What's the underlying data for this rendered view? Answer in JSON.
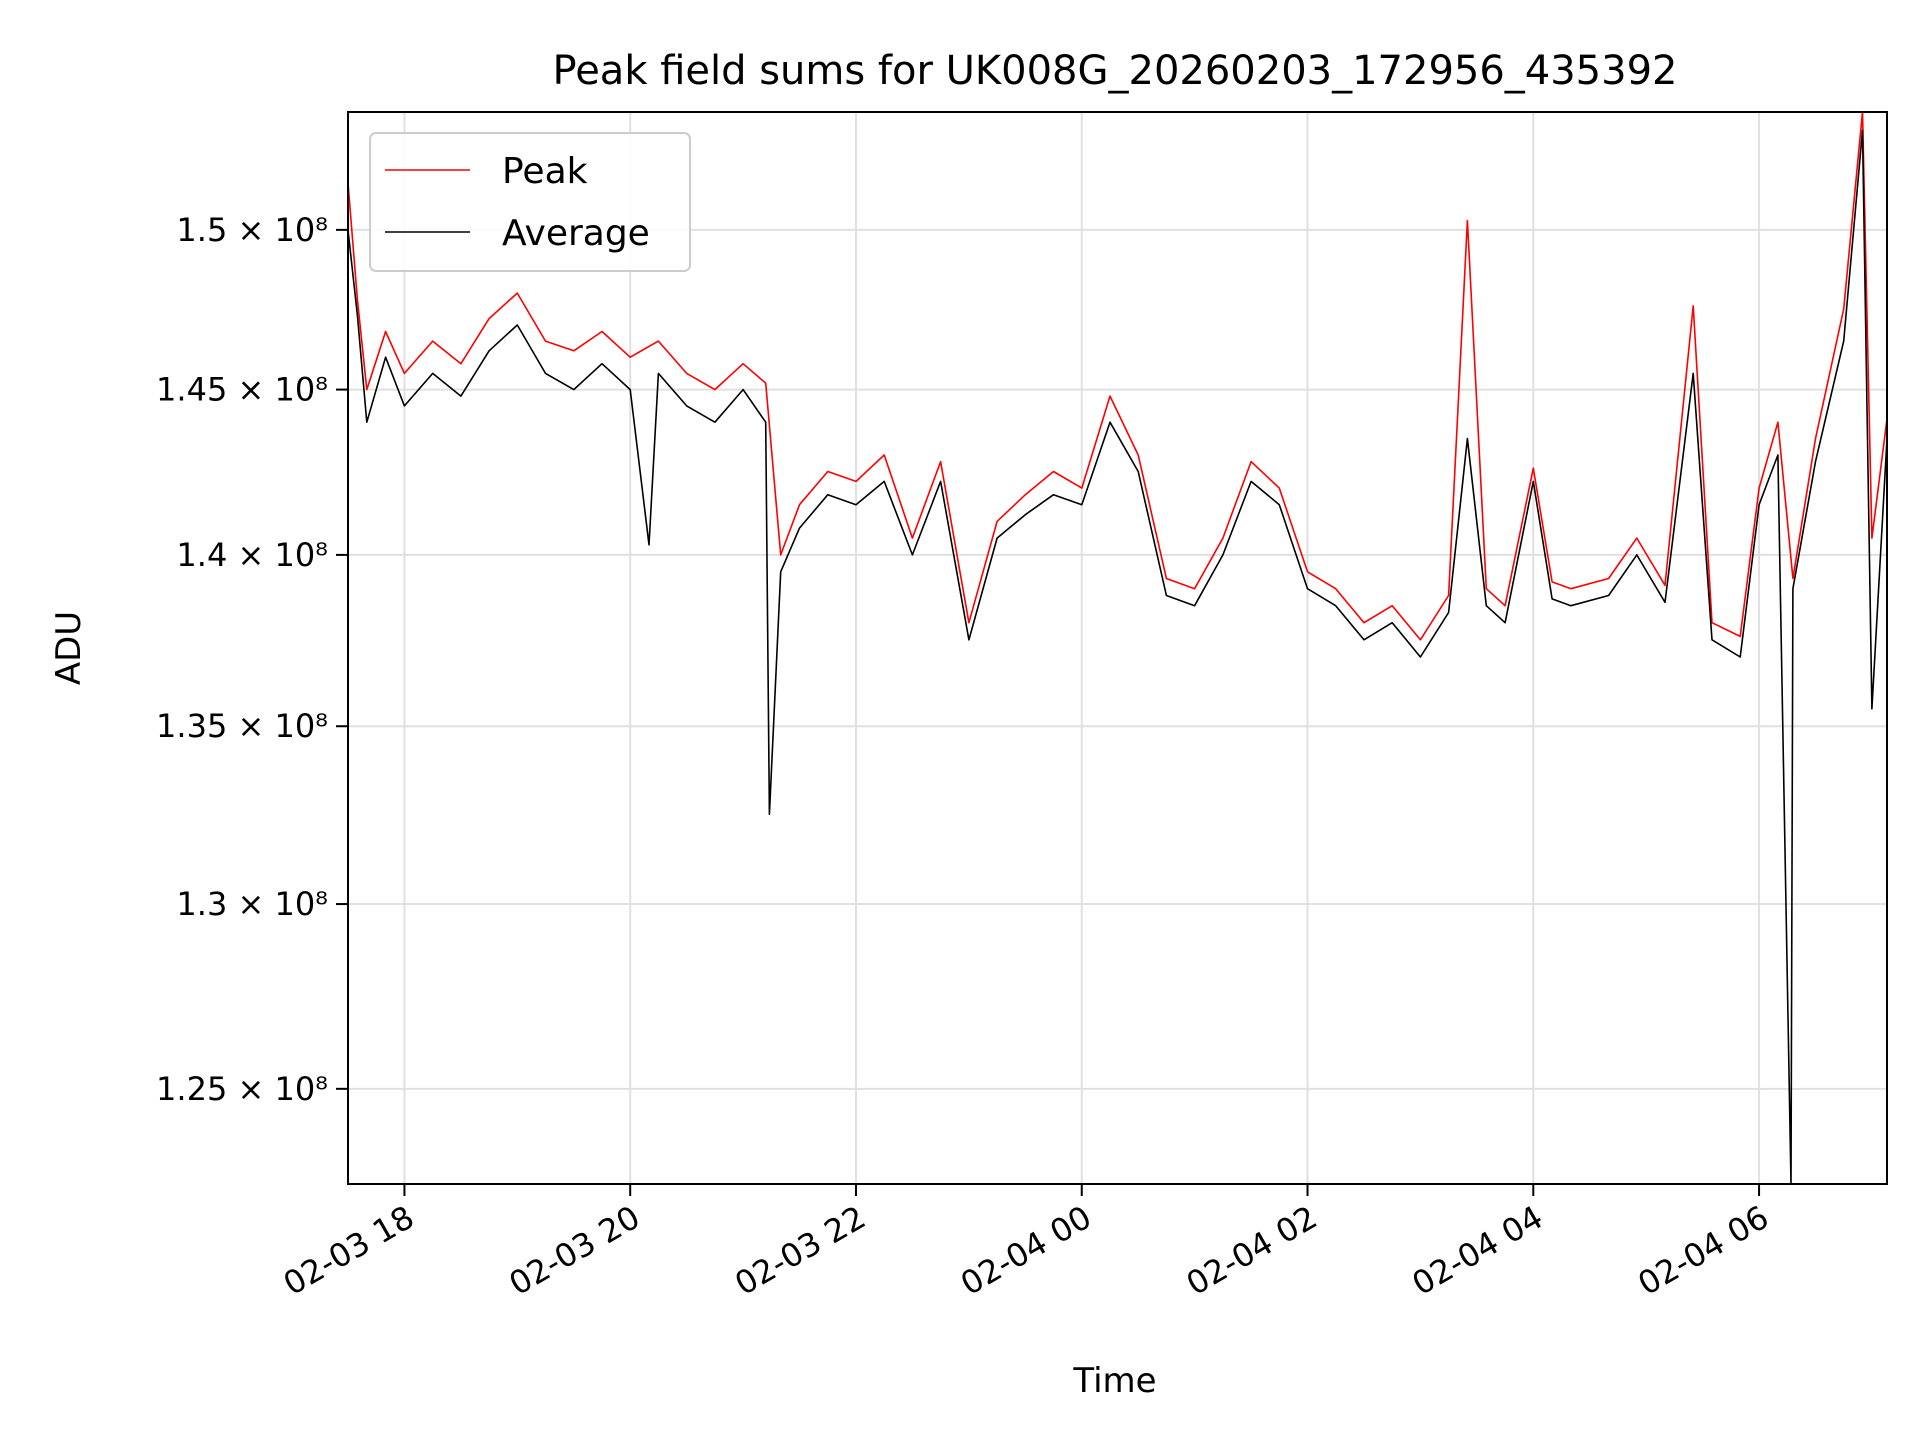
{
  "chart_data": {
    "type": "line",
    "title": "Peak field sums for UK008G_20260203_172956_435392",
    "xlabel": "Time",
    "ylabel": "ADU",
    "xlim": [
      "2026-02-03 17:30",
      "2026-02-04 07:08"
    ],
    "ylim": [
      122500000,
      153800000
    ],
    "yscale": "log",
    "grid": true,
    "legend_position": "upper-left",
    "x_ticks": [
      {
        "value": "2026-02-03 18:00",
        "label": "02-03 18"
      },
      {
        "value": "2026-02-03 20:00",
        "label": "02-03 20"
      },
      {
        "value": "2026-02-03 22:00",
        "label": "02-03 22"
      },
      {
        "value": "2026-02-04 00:00",
        "label": "02-04 00"
      },
      {
        "value": "2026-02-04 02:00",
        "label": "02-04 02"
      },
      {
        "value": "2026-02-04 04:00",
        "label": "02-04 04"
      },
      {
        "value": "2026-02-04 06:00",
        "label": "02-04 06"
      }
    ],
    "y_ticks": [
      {
        "value": 125000000,
        "label": "1.25 × 10⁸"
      },
      {
        "value": 130000000,
        "label": "1.3 × 10⁸"
      },
      {
        "value": 135000000,
        "label": "1.35 × 10⁸"
      },
      {
        "value": 140000000,
        "label": "1.4 × 10⁸"
      },
      {
        "value": 145000000,
        "label": "1.45 × 10⁸"
      },
      {
        "value": 150000000,
        "label": "1.5 × 10⁸"
      }
    ],
    "series": [
      {
        "name": "Peak",
        "color": "#ff0000",
        "x": [
          "2026-02-03 17:30",
          "2026-02-03 17:35",
          "2026-02-03 17:40",
          "2026-02-03 17:50",
          "2026-02-03 18:00",
          "2026-02-03 18:15",
          "2026-02-03 18:30",
          "2026-02-03 18:45",
          "2026-02-03 19:00",
          "2026-02-03 19:15",
          "2026-02-03 19:30",
          "2026-02-03 19:45",
          "2026-02-03 20:00",
          "2026-02-03 20:15",
          "2026-02-03 20:30",
          "2026-02-03 20:45",
          "2026-02-03 21:00",
          "2026-02-03 21:12",
          "2026-02-03 21:20",
          "2026-02-03 21:30",
          "2026-02-03 21:45",
          "2026-02-03 22:00",
          "2026-02-03 22:15",
          "2026-02-03 22:30",
          "2026-02-03 22:45",
          "2026-02-03 23:00",
          "2026-02-03 23:15",
          "2026-02-03 23:30",
          "2026-02-03 23:45",
          "2026-02-04 00:00",
          "2026-02-04 00:15",
          "2026-02-04 00:30",
          "2026-02-04 00:45",
          "2026-02-04 01:00",
          "2026-02-04 01:15",
          "2026-02-04 01:30",
          "2026-02-04 01:45",
          "2026-02-04 02:00",
          "2026-02-04 02:15",
          "2026-02-04 02:30",
          "2026-02-04 02:45",
          "2026-02-04 03:00",
          "2026-02-04 03:15",
          "2026-02-04 03:25",
          "2026-02-04 03:35",
          "2026-02-04 03:45",
          "2026-02-04 04:00",
          "2026-02-04 04:10",
          "2026-02-04 04:20",
          "2026-02-04 04:40",
          "2026-02-04 04:55",
          "2026-02-04 05:10",
          "2026-02-04 05:25",
          "2026-02-04 05:35",
          "2026-02-04 05:50",
          "2026-02-04 06:00",
          "2026-02-04 06:10",
          "2026-02-04 06:18",
          "2026-02-04 06:30",
          "2026-02-04 06:45",
          "2026-02-04 06:55",
          "2026-02-04 07:00",
          "2026-02-04 07:08"
        ],
        "values": [
          151500000,
          147800000,
          145000000,
          146800000,
          145500000,
          146500000,
          145800000,
          147200000,
          148000000,
          146500000,
          146200000,
          146800000,
          146000000,
          146500000,
          145500000,
          145000000,
          145800000,
          145200000,
          140000000,
          141500000,
          142500000,
          142200000,
          143000000,
          140500000,
          142800000,
          138000000,
          141000000,
          141800000,
          142500000,
          142000000,
          144800000,
          143000000,
          139300000,
          139000000,
          140500000,
          142800000,
          142000000,
          139500000,
          139000000,
          138000000,
          138500000,
          137500000,
          138800000,
          150300000,
          139000000,
          138500000,
          142600000,
          139200000,
          139000000,
          139300000,
          140500000,
          139100000,
          147600000,
          138000000,
          137600000,
          142000000,
          144000000,
          139300000,
          143500000,
          147500000,
          153800000,
          140500000,
          144100000
        ]
      },
      {
        "name": "Average",
        "color": "#000000",
        "x": [
          "2026-02-03 17:30",
          "2026-02-03 17:35",
          "2026-02-03 17:40",
          "2026-02-03 17:50",
          "2026-02-03 18:00",
          "2026-02-03 18:15",
          "2026-02-03 18:30",
          "2026-02-03 18:45",
          "2026-02-03 19:00",
          "2026-02-03 19:15",
          "2026-02-03 19:30",
          "2026-02-03 19:45",
          "2026-02-03 20:00",
          "2026-02-03 20:10",
          "2026-02-03 20:15",
          "2026-02-03 20:30",
          "2026-02-03 20:45",
          "2026-02-03 21:00",
          "2026-02-03 21:12",
          "2026-02-03 21:14",
          "2026-02-03 21:20",
          "2026-02-03 21:30",
          "2026-02-03 21:45",
          "2026-02-03 22:00",
          "2026-02-03 22:15",
          "2026-02-03 22:30",
          "2026-02-03 22:45",
          "2026-02-03 23:00",
          "2026-02-03 23:15",
          "2026-02-03 23:30",
          "2026-02-03 23:45",
          "2026-02-04 00:00",
          "2026-02-04 00:15",
          "2026-02-04 00:30",
          "2026-02-04 00:45",
          "2026-02-04 01:00",
          "2026-02-04 01:15",
          "2026-02-04 01:30",
          "2026-02-04 01:45",
          "2026-02-04 02:00",
          "2026-02-04 02:15",
          "2026-02-04 02:30",
          "2026-02-04 02:45",
          "2026-02-04 03:00",
          "2026-02-04 03:15",
          "2026-02-04 03:25",
          "2026-02-04 03:35",
          "2026-02-04 03:45",
          "2026-02-04 04:00",
          "2026-02-04 04:10",
          "2026-02-04 04:20",
          "2026-02-04 04:40",
          "2026-02-04 04:55",
          "2026-02-04 05:10",
          "2026-02-04 05:25",
          "2026-02-04 05:35",
          "2026-02-04 05:50",
          "2026-02-04 06:00",
          "2026-02-04 06:10",
          "2026-02-04 06:17",
          "2026-02-04 06:18",
          "2026-02-04 06:30",
          "2026-02-04 06:45",
          "2026-02-04 06:55",
          "2026-02-04 07:00",
          "2026-02-04 07:08"
        ],
        "values": [
          150000000,
          147300000,
          144000000,
          146000000,
          144500000,
          145500000,
          144800000,
          146200000,
          147000000,
          145500000,
          145000000,
          145800000,
          145000000,
          140300000,
          145500000,
          144500000,
          144000000,
          145000000,
          144000000,
          132500000,
          139500000,
          140800000,
          141800000,
          141500000,
          142200000,
          140000000,
          142200000,
          137500000,
          140500000,
          141200000,
          141800000,
          141500000,
          144000000,
          142500000,
          138800000,
          138500000,
          140000000,
          142200000,
          141500000,
          139000000,
          138500000,
          137500000,
          138000000,
          137000000,
          138300000,
          143500000,
          138500000,
          138000000,
          142200000,
          138700000,
          138500000,
          138800000,
          140000000,
          138600000,
          145500000,
          137500000,
          137000000,
          141500000,
          143000000,
          122500000,
          139000000,
          142800000,
          146500000,
          153200000,
          135500000,
          143500000
        ]
      }
    ]
  }
}
